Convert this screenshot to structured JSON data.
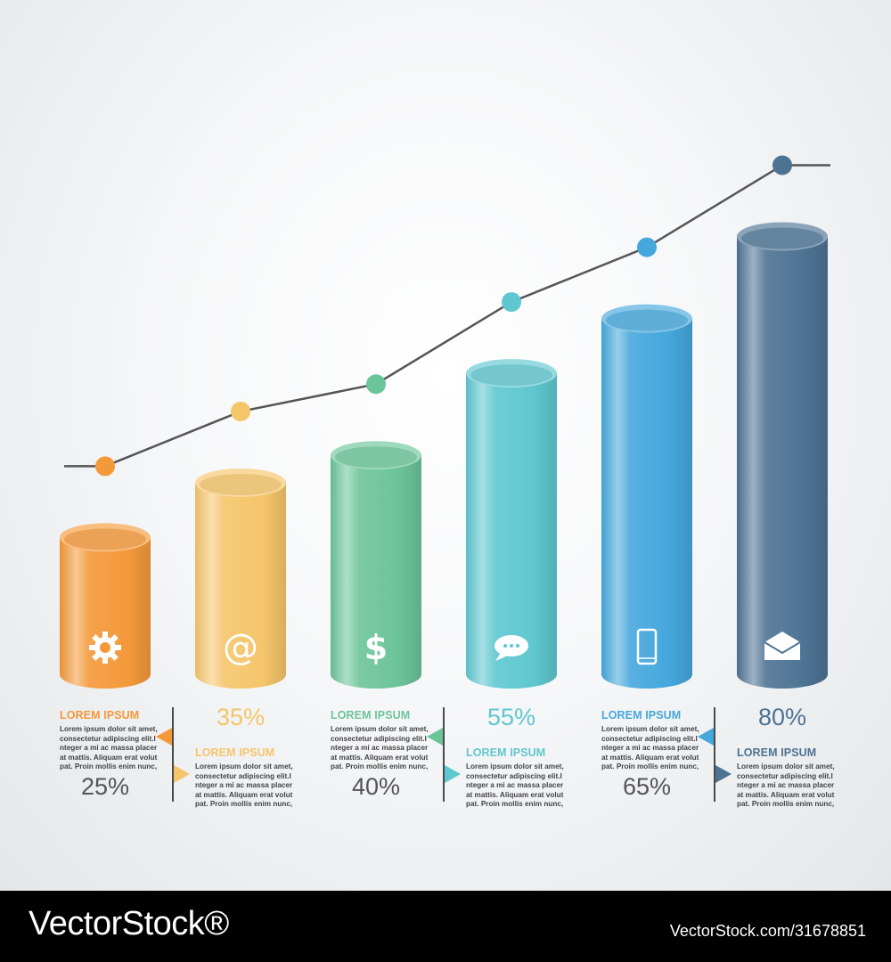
{
  "chart_data": {
    "type": "bar",
    "values": [
      25,
      35,
      40,
      55,
      65,
      80
    ],
    "point_labels": [
      "25%",
      "35%",
      "40%",
      "55%",
      "65%",
      "80%"
    ],
    "ylim": [
      0,
      90
    ],
    "series": [
      {
        "values": [
          25,
          35,
          40,
          55,
          65,
          80
        ]
      }
    ],
    "line_overlay": {
      "values": [
        25,
        35,
        40,
        55,
        65,
        80
      ],
      "color": "#555555"
    },
    "bar_colors": [
      "#f4993a",
      "#f5c56a",
      "#6cc49a",
      "#5fc7cf",
      "#45a7dc",
      "#4d7393"
    ],
    "bar_icons": [
      "gear-icon",
      "at-icon",
      "dollar-icon",
      "chat-icon",
      "phone-icon",
      "mail-icon"
    ],
    "grid": false,
    "legend": "none"
  },
  "bar_icon_glyphs": [
    "",
    "@",
    "$",
    "",
    "",
    ""
  ],
  "panels": [
    {
      "heading": "LOREM IPSUM",
      "body": [
        "Lorem ipsum dolor sit amet,",
        "consectetur adipiscing elit.I",
        "nteger a mi ac massa placer",
        "at mattis. Aliquam erat volut",
        "pat. Proin mollis enim nunc,"
      ],
      "color": "#f4993a"
    },
    {
      "heading": "LOREM IPSUM",
      "body": [
        "Lorem ipsum dolor sit amet,",
        "consectetur adipiscing elit.I",
        "nteger a mi ac massa placer",
        "at mattis. Aliquam erat volut",
        "pat. Proin mollis enim nunc,"
      ],
      "color": "#f5c56a"
    },
    {
      "heading": "LOREM IPSUM",
      "body": [
        "Lorem ipsum dolor sit amet,",
        "consectetur adipiscing elit.I",
        "nteger a mi ac massa placer",
        "at mattis. Aliquam erat volut",
        "pat. Proin mollis enim nunc,"
      ],
      "color": "#6cc49a"
    },
    {
      "heading": "LOREM IPSUM",
      "body": [
        "Lorem ipsum dolor sit amet,",
        "consectetur adipiscing elit.I",
        "nteger a mi ac massa placer",
        "at mattis. Aliquam erat volut",
        "pat. Proin mollis enim nunc,"
      ],
      "color": "#5fc7cf"
    },
    {
      "heading": "LOREM IPSUM",
      "body": [
        "Lorem ipsum dolor sit amet,",
        "consectetur adipiscing elit.I",
        "nteger a mi ac massa placer",
        "at mattis. Aliquam erat volut",
        "pat. Proin mollis enim nunc,"
      ],
      "color": "#45a7dc"
    },
    {
      "heading": "LOREM IPSUM",
      "body": [
        "Lorem ipsum dolor sit amet,",
        "consectetur adipiscing elit.I",
        "nteger a mi ac massa placer",
        "at mattis. Aliquam erat volut",
        "pat. Proin mollis enim nunc,"
      ],
      "color": "#4d7393"
    }
  ],
  "percent_color_dark": "#555555",
  "footer": {
    "brand": "VectorStock®",
    "image_id": "VectorStock.com/31678851"
  }
}
